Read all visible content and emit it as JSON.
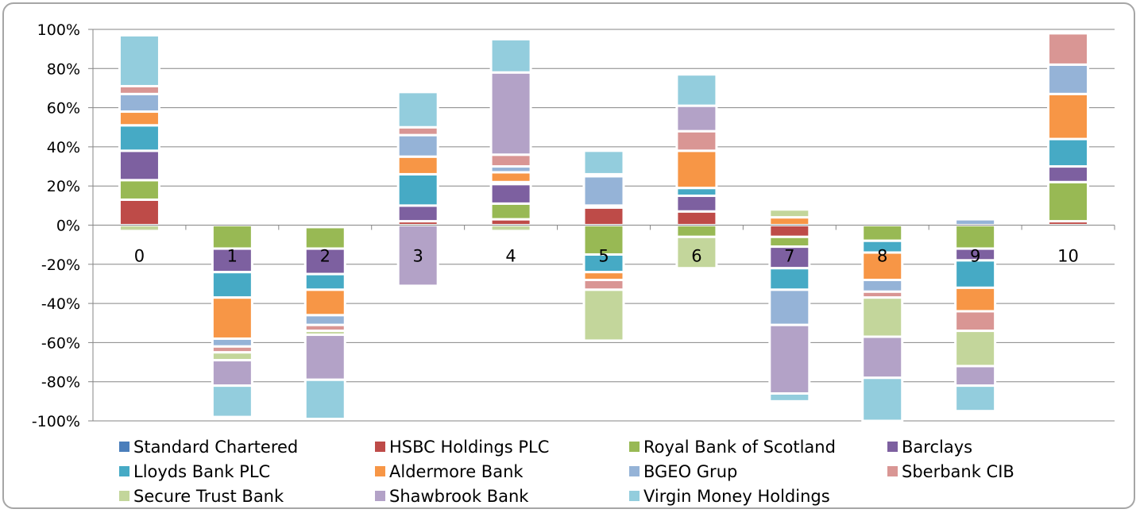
{
  "chart_data": {
    "type": "bar",
    "stacked": true,
    "categories": [
      "0",
      "1",
      "2",
      "3",
      "4",
      "5",
      "6",
      "7",
      "8",
      "9",
      "10"
    ],
    "ylim": [
      -100,
      100
    ],
    "yticks": [
      "-100%",
      "-80%",
      "-60%",
      "-40%",
      "-20%",
      "0%",
      "20%",
      "40%",
      "60%",
      "80%",
      "100%"
    ],
    "grid": true,
    "legend_position": "bottom",
    "series": [
      {
        "name": "Standard Chartered",
        "color": "#4a7ebb",
        "values": [
          0,
          0,
          0,
          0,
          0,
          0,
          0,
          0,
          0,
          0,
          0
        ]
      },
      {
        "name": "HSBC Holdings PLC",
        "color": "#be4b48",
        "values": [
          13,
          0,
          -1,
          2,
          3,
          9,
          7,
          -6,
          0,
          0,
          2
        ]
      },
      {
        "name": "Royal Bank of Scotland",
        "color": "#98b954",
        "values": [
          10,
          -12,
          -11,
          0,
          8,
          -15,
          -6,
          -5,
          -8,
          -12,
          20
        ]
      },
      {
        "name": "Barclays",
        "color": "#7d60a0",
        "values": [
          15,
          -12,
          -13,
          8,
          10,
          1,
          8,
          -11,
          0,
          -6,
          8
        ]
      },
      {
        "name": "Lloyds Bank PLC",
        "color": "#46aac5",
        "values": [
          13,
          -13,
          -8,
          16,
          1,
          -9,
          4,
          -11,
          -6,
          -14,
          14
        ]
      },
      {
        "name": "Aldermore Bank",
        "color": "#f79646",
        "values": [
          7,
          -21,
          -13,
          9,
          5,
          -4,
          19,
          4,
          -14,
          -12,
          23
        ]
      },
      {
        "name": "BGEO Grup",
        "color": "#95b3d7",
        "values": [
          9,
          -4,
          -5,
          11,
          3,
          15,
          0,
          -18,
          -6,
          3,
          15
        ]
      },
      {
        "name": "Sberbank CIB",
        "color": "#d99694",
        "values": [
          4,
          -3,
          -3,
          4,
          6,
          -5,
          10,
          0,
          -3,
          -10,
          16
        ]
      },
      {
        "name": "Secure Trust Bank",
        "color": "#c3d69b",
        "values": [
          -3,
          -4,
          -2,
          0,
          -3,
          -26,
          -16,
          4,
          -20,
          -18,
          0
        ]
      },
      {
        "name": "Shawbrook Bank",
        "color": "#b3a2c7",
        "values": [
          0,
          -13,
          -23,
          -31,
          42,
          1,
          13,
          -35,
          -21,
          -10,
          0
        ]
      },
      {
        "name": "Virgin Money Holdings",
        "color": "#93cddd",
        "values": [
          26,
          -16,
          -20,
          18,
          17,
          12,
          16,
          -4,
          -22,
          -13,
          0
        ]
      }
    ]
  }
}
